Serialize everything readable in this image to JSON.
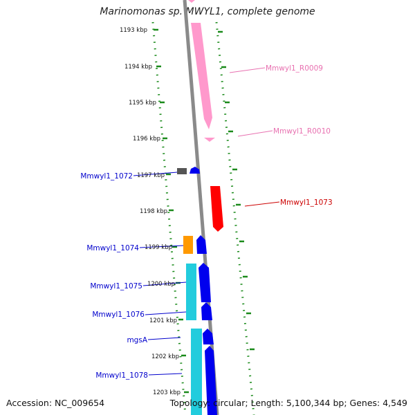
{
  "title": "Marinomonas sp. MWYL1, complete genome",
  "footer": {
    "accession": "Accession: NC_009654",
    "topology": "Topology: circular; Length: 5,100,344 bp; Genes: 4,549"
  },
  "colors": {
    "backbone": "#8a8a8a",
    "tick_dots": "#1a8a1a",
    "rrna": "#ff99cc",
    "rrna_label": "#e870b0",
    "red_gene": "#ff0000",
    "blue_gene": "#0000ee",
    "cyan_gene": "#22ccdd",
    "orange_gene": "#ff9900",
    "grey_gene": "#555555",
    "label_blue": "#0000cc",
    "label_red": "#cc0000"
  },
  "scale_labels": [
    "1193 kbp",
    "1194 kbp",
    "1195 kbp",
    "1196 kbp",
    "1197 kbp",
    "1198 kbp",
    "1199 kbp",
    "1200 kbp",
    "1201 kbp",
    "1202 kbp",
    "1203 kbp"
  ],
  "gene_labels": {
    "r0009": "Mmwyl1_R0009",
    "r0010": "Mmwyl1_R0010",
    "g1073": "Mmwyl1_1073",
    "g1072": "Mmwyl1_1072",
    "g1074": "Mmwyl1_1074",
    "g1075": "Mmwyl1_1075",
    "g1076": "Mmwyl1_1076",
    "mgsA": "mgsA",
    "g1078": "Mmwyl1_1078"
  }
}
